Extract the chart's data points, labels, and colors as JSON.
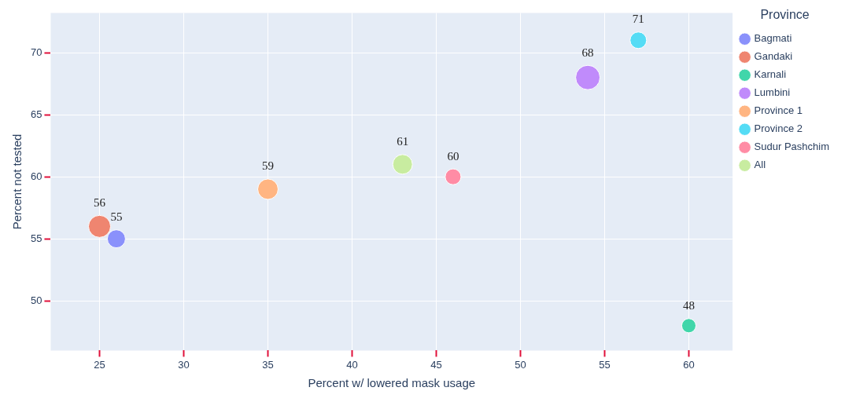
{
  "chart_data": {
    "type": "bubble",
    "xlabel": "Percent w/ lowered mask usage",
    "ylabel": "Percent not tested",
    "legend_title": "Province",
    "xlim": [
      22.1,
      62.6
    ],
    "xticks": [
      25,
      30,
      35,
      40,
      45,
      50,
      55,
      60
    ],
    "ylim": [
      46,
      73.2
    ],
    "yticks": [
      50,
      55,
      60,
      65,
      70
    ],
    "grid": true,
    "legend": "right",
    "data_labels": true,
    "series": [
      {
        "name": "Bagmati",
        "color": "#8a91fb",
        "x": [
          26
        ],
        "values": [
          55
        ],
        "sizes": [
          0.55
        ]
      },
      {
        "name": "Gandaki",
        "color": "#ef8570",
        "x": [
          25
        ],
        "values": [
          56
        ],
        "sizes": [
          0.82
        ]
      },
      {
        "name": "Karnali",
        "color": "#40d6aa",
        "x": [
          60
        ],
        "values": [
          48
        ],
        "sizes": [
          0.34
        ]
      },
      {
        "name": "Lumbini",
        "color": "#c08bfb",
        "x": [
          54
        ],
        "values": [
          68
        ],
        "sizes": [
          1
        ]
      },
      {
        "name": "Province 1",
        "color": "#ffb582",
        "x": [
          35
        ],
        "values": [
          59
        ],
        "sizes": [
          0.7
        ]
      },
      {
        "name": "Province 2",
        "color": "#55dcf5",
        "x": [
          57
        ],
        "values": [
          71
        ],
        "sizes": [
          0.46
        ]
      },
      {
        "name": "Sudur Pashchim",
        "color": "#ff8ca5",
        "x": [
          46
        ],
        "values": [
          60
        ],
        "sizes": [
          0.42
        ]
      },
      {
        "name": "All",
        "color": "#c8eca0",
        "x": [
          43
        ],
        "values": [
          61
        ],
        "sizes": [
          0.65
        ]
      }
    ]
  }
}
